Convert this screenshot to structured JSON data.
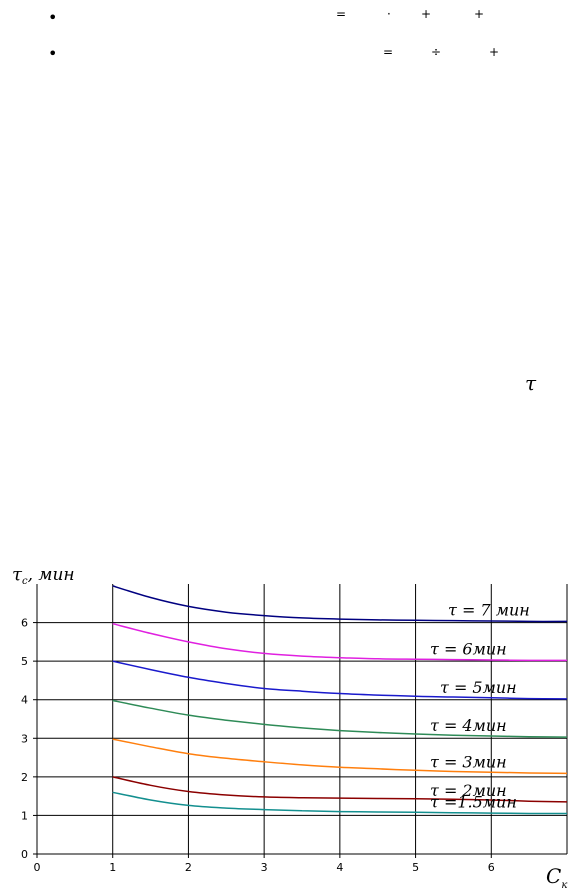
{
  "bullets": [
    {
      "glyph": "•",
      "symbols": [
        "=",
        "·",
        "+",
        "+"
      ]
    },
    {
      "glyph": "•",
      "symbols": [
        "=",
        "÷",
        "+"
      ]
    }
  ],
  "tau_symbol": "τ",
  "chart_data": {
    "type": "line",
    "title": "",
    "ylabel_main": "τ",
    "ylabel_sub": "c",
    "ylabel_unit": ", мин",
    "xlabel_main": "C",
    "xlabel_sub": "к",
    "xlim": [
      0,
      7
    ],
    "ylim": [
      0,
      7
    ],
    "xticks": [
      "0",
      "1",
      "2",
      "3",
      "4",
      "5",
      "6"
    ],
    "yticks": [
      "0",
      "1",
      "2",
      "3",
      "4",
      "5",
      "6"
    ],
    "grid": true,
    "x": [
      1,
      1.5,
      2,
      2.5,
      3,
      3.5,
      4,
      4.5,
      5,
      5.5,
      6,
      6.5,
      7
    ],
    "series": [
      {
        "name": "τ = 7 мин",
        "color": "#000080",
        "values": [
          6.95,
          6.65,
          6.42,
          6.27,
          6.18,
          6.12,
          6.09,
          6.07,
          6.06,
          6.05,
          6.04,
          6.03,
          6.03
        ]
      },
      {
        "name": "τ = 6мин",
        "color": "#e020e0",
        "values": [
          5.97,
          5.72,
          5.5,
          5.32,
          5.2,
          5.13,
          5.09,
          5.06,
          5.05,
          5.04,
          5.03,
          5.02,
          5.02
        ]
      },
      {
        "name": "τ = 5мин",
        "color": "#1a1acc",
        "values": [
          5.0,
          4.78,
          4.58,
          4.42,
          4.29,
          4.22,
          4.16,
          4.12,
          4.09,
          4.07,
          4.05,
          4.03,
          4.02
        ]
      },
      {
        "name": "τ = 4мин",
        "color": "#2e8b57",
        "values": [
          3.98,
          3.78,
          3.6,
          3.47,
          3.36,
          3.27,
          3.2,
          3.15,
          3.11,
          3.08,
          3.06,
          3.04,
          3.03
        ]
      },
      {
        "name": "τ = 3мин",
        "color": "#ff7f0e",
        "values": [
          2.98,
          2.78,
          2.6,
          2.48,
          2.39,
          2.31,
          2.25,
          2.21,
          2.17,
          2.14,
          2.12,
          2.1,
          2.09
        ]
      },
      {
        "name": "τ = 2мин",
        "color": "#8b0000",
        "values": [
          2.0,
          1.78,
          1.62,
          1.53,
          1.48,
          1.46,
          1.45,
          1.44,
          1.43,
          1.42,
          1.4,
          1.37,
          1.35
        ]
      },
      {
        "name": "τ =1.5мин",
        "color": "#138f8f",
        "values": [
          1.6,
          1.4,
          1.26,
          1.19,
          1.15,
          1.12,
          1.1,
          1.09,
          1.08,
          1.07,
          1.06,
          1.05,
          1.05
        ]
      }
    ]
  }
}
